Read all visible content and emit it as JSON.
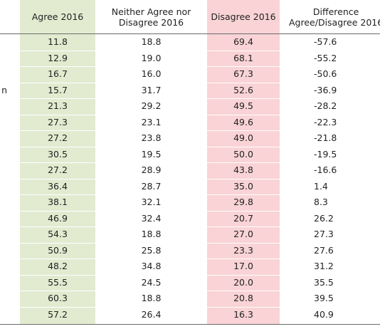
{
  "headers": {
    "agree": "Agree 2016",
    "neither": "Neither Agree nor\nDisagree 2016",
    "disagree": "Disagree 2016",
    "difference": "Difference\nAgree/Disagree 2016"
  },
  "row_label_fragment": "n",
  "rows": [
    {
      "agree": "11.8",
      "neither": "18.8",
      "disagree": "69.4",
      "difference": "-57.6"
    },
    {
      "agree": "12.9",
      "neither": "19.0",
      "disagree": "68.1",
      "difference": "-55.2"
    },
    {
      "agree": "16.7",
      "neither": "16.0",
      "disagree": "67.3",
      "difference": "-50.6"
    },
    {
      "agree": "15.7",
      "neither": "31.7",
      "disagree": "52.6",
      "difference": "-36.9"
    },
    {
      "agree": "21.3",
      "neither": "29.2",
      "disagree": "49.5",
      "difference": "-28.2"
    },
    {
      "agree": "27.3",
      "neither": "23.1",
      "disagree": "49.6",
      "difference": "-22.3"
    },
    {
      "agree": "27.2",
      "neither": "23.8",
      "disagree": "49.0",
      "difference": "-21.8"
    },
    {
      "agree": "30.5",
      "neither": "19.5",
      "disagree": "50.0",
      "difference": "-19.5"
    },
    {
      "agree": "27.2",
      "neither": "28.9",
      "disagree": "43.8",
      "difference": "-16.6"
    },
    {
      "agree": "36.4",
      "neither": "28.7",
      "disagree": "35.0",
      "difference": "1.4"
    },
    {
      "agree": "38.1",
      "neither": "32.1",
      "disagree": "29.8",
      "difference": "8.3"
    },
    {
      "agree": "46.9",
      "neither": "32.4",
      "disagree": "20.7",
      "difference": "26.2"
    },
    {
      "agree": "54.3",
      "neither": "18.8",
      "disagree": "27.0",
      "difference": "27.3"
    },
    {
      "agree": "50.9",
      "neither": "25.8",
      "disagree": "23.3",
      "difference": "27.6"
    },
    {
      "agree": "48.2",
      "neither": "34.8",
      "disagree": "17.0",
      "difference": "31.2"
    },
    {
      "agree": "55.5",
      "neither": "24.5",
      "disagree": "20.0",
      "difference": "35.5"
    },
    {
      "agree": "60.3",
      "neither": "18.8",
      "disagree": "20.8",
      "difference": "39.5"
    },
    {
      "agree": "57.2",
      "neither": "26.4",
      "disagree": "16.3",
      "difference": "40.9"
    }
  ]
}
